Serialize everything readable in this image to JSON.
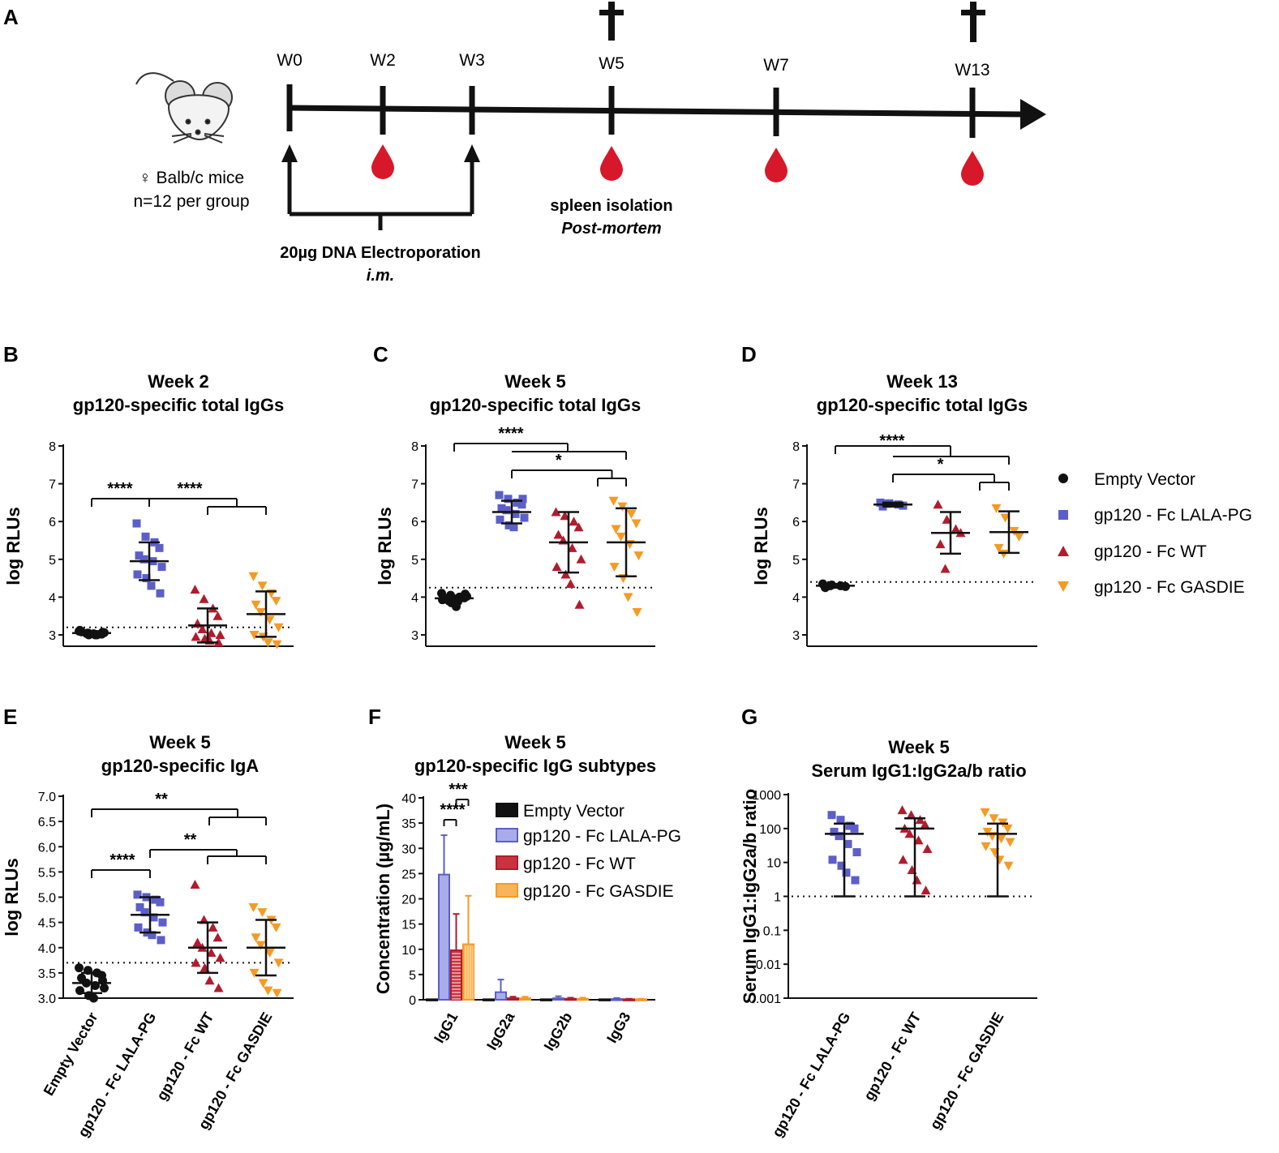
{
  "colors": {
    "empty": "#111111",
    "lala": "#5b5fc7",
    "wt": "#b01c2e",
    "gasdie": "#f59a23",
    "blood": "#d7182a"
  },
  "panel_a": {
    "letter": "A",
    "mouse_label": "♀ Balb/c mice",
    "n_label": "n=12 per group",
    "weeks": [
      "W0",
      "W2",
      "W3",
      "W5",
      "W7",
      "W13"
    ],
    "electroporation": "20µg DNA Electroporation",
    "route": "i.m.",
    "spleen": "spleen isolation",
    "postmortem": "Post-mortem",
    "cross_glyph": "✝",
    "drop_icon": "blood-drop-icon"
  },
  "legend": {
    "items": [
      "Empty Vector",
      "gp120 - Fc LALA-PG",
      "gp120 - Fc WT",
      "gp120 - Fc GASDIE"
    ]
  },
  "chart_data": [
    {
      "id": "B",
      "type": "scatter",
      "letter": "B",
      "title": [
        "Week 2",
        "gp120-specific total IgGs"
      ],
      "ylabel": "log RLUs",
      "ylim": [
        2.7,
        8
      ],
      "yticks": [
        3,
        4,
        5,
        6,
        7,
        8
      ],
      "ytick_labels": [
        "3",
        "4",
        "5",
        "6",
        "7",
        "8"
      ],
      "cutoff": 3.2,
      "categories": [
        "Empty Vector",
        "gp120 - Fc LALA-PG",
        "gp120 - Fc WT",
        "gp120 - Fc GASDIE"
      ],
      "groups": [
        {
          "mean": 3.05,
          "sd": 0.05,
          "points": [
            3.1,
            3.05,
            3.0,
            3.02,
            3.08,
            3.04,
            3.0,
            3.06,
            3.12,
            3.0,
            3.03,
            3.07
          ]
        },
        {
          "mean": 4.95,
          "sd": 0.5,
          "points": [
            5.95,
            5.6,
            5.45,
            5.3,
            5.1,
            5.0,
            4.95,
            4.8,
            4.6,
            4.5,
            4.3,
            4.1
          ]
        },
        {
          "mean": 3.25,
          "sd": 0.45,
          "points": [
            4.2,
            3.95,
            3.7,
            3.5,
            3.3,
            3.15,
            3.05,
            3.0,
            2.95,
            2.9,
            2.85,
            2.8
          ]
        },
        {
          "mean": 3.55,
          "sd": 0.6,
          "points": [
            4.55,
            4.3,
            4.1,
            3.9,
            3.8,
            3.6,
            3.4,
            3.2,
            3.0,
            2.95,
            2.8,
            2.75
          ]
        }
      ],
      "sig": [
        {
          "label": "****",
          "from": 0,
          "to": 1
        },
        {
          "label": "****",
          "from": 1,
          "to": [
            2,
            3
          ]
        }
      ]
    },
    {
      "id": "C",
      "type": "scatter",
      "letter": "C",
      "title": [
        "Week 5",
        "gp120-specific total IgGs"
      ],
      "ylabel": "log RLUs",
      "ylim": [
        2.7,
        8
      ],
      "yticks": [
        3,
        4,
        5,
        6,
        7,
        8
      ],
      "ytick_labels": [
        "3",
        "4",
        "5",
        "6",
        "7",
        "8"
      ],
      "cutoff": 4.25,
      "categories": [
        "Empty Vector",
        "gp120 - Fc LALA-PG",
        "gp120 - Fc WT",
        "gp120 - Fc GASDIE"
      ],
      "groups": [
        {
          "mean": 3.97,
          "sd": 0.07,
          "points": [
            4.1,
            4.05,
            4.0,
            3.98,
            3.95,
            3.9,
            3.88,
            4.02,
            3.93,
            3.85,
            3.75,
            4.08
          ]
        },
        {
          "mean": 6.25,
          "sd": 0.3,
          "points": [
            6.7,
            6.6,
            6.5,
            6.45,
            6.35,
            6.3,
            6.2,
            6.1,
            6.05,
            5.9,
            5.85,
            6.6
          ]
        },
        {
          "mean": 5.45,
          "sd": 0.8,
          "points": [
            6.25,
            6.15,
            6.0,
            5.85,
            5.65,
            5.5,
            5.3,
            5.0,
            4.8,
            4.6,
            4.35,
            3.8
          ]
        },
        {
          "mean": 5.45,
          "sd": 0.9,
          "points": [
            6.55,
            6.4,
            6.2,
            5.95,
            5.8,
            5.6,
            5.4,
            5.1,
            4.8,
            4.5,
            4.0,
            3.6
          ]
        }
      ],
      "sig": [
        {
          "label": "****",
          "from": 0,
          "to": [
            1,
            2,
            3
          ]
        },
        {
          "label": "*",
          "from": 1,
          "to": [
            2,
            3
          ]
        }
      ]
    },
    {
      "id": "D",
      "type": "scatter",
      "letter": "D",
      "title": [
        "Week 13",
        "gp120-specific total IgGs"
      ],
      "ylabel": "log RLUs",
      "ylim": [
        2.7,
        8
      ],
      "yticks": [
        3,
        4,
        5,
        6,
        7,
        8
      ],
      "ytick_labels": [
        "3",
        "4",
        "5",
        "6",
        "7",
        "8"
      ],
      "cutoff": 4.4,
      "categories": [
        "Empty Vector",
        "gp120 - Fc LALA-PG",
        "gp120 - Fc WT",
        "gp120 - Fc GASDIE"
      ],
      "groups": [
        {
          "mean": 4.3,
          "sd": 0.05,
          "points": [
            4.35,
            4.32,
            4.3,
            4.28,
            4.25,
            4.3
          ]
        },
        {
          "mean": 6.45,
          "sd": 0.05,
          "points": [
            6.5,
            6.48,
            6.45,
            6.42,
            6.4,
            6.47
          ]
        },
        {
          "mean": 5.7,
          "sd": 0.55,
          "points": [
            6.45,
            6.05,
            5.8,
            5.7,
            5.4,
            4.75
          ]
        },
        {
          "mean": 5.72,
          "sd": 0.55,
          "points": [
            6.35,
            6.1,
            5.75,
            5.6,
            5.3,
            5.15
          ]
        }
      ],
      "sig": [
        {
          "label": "****",
          "from": 0,
          "to": [
            1,
            2,
            3
          ]
        },
        {
          "label": "*",
          "from": 1,
          "to": [
            2,
            3
          ]
        }
      ]
    },
    {
      "id": "E",
      "type": "scatter",
      "letter": "E",
      "title": [
        "Week 5",
        "gp120-specific IgA"
      ],
      "ylabel": "log RLUs",
      "ylim": [
        3.0,
        7.0
      ],
      "yticks": [
        3.0,
        3.5,
        4.0,
        4.5,
        5.0,
        5.5,
        6.0,
        6.5,
        7.0
      ],
      "ytick_labels": [
        "3.0",
        "3.5",
        "4.0",
        "4.5",
        "5.0",
        "5.5",
        "6.0",
        "6.5",
        "7.0"
      ],
      "cutoff": 3.7,
      "categories": [
        "Empty Vector",
        "gp120 - Fc LALA-PG",
        "gp120 - Fc WT",
        "gp120 - Fc GASDIE"
      ],
      "groups": [
        {
          "mean": 3.3,
          "sd": 0.2,
          "points": [
            3.6,
            3.55,
            3.5,
            3.45,
            3.4,
            3.3,
            3.25,
            3.2,
            3.15,
            3.05,
            3.0,
            3.35
          ]
        },
        {
          "mean": 4.65,
          "sd": 0.35,
          "points": [
            5.05,
            5.0,
            4.95,
            4.9,
            4.8,
            4.7,
            4.6,
            4.5,
            4.4,
            4.3,
            4.25,
            4.15
          ]
        },
        {
          "mean": 4.0,
          "sd": 0.5,
          "points": [
            5.25,
            4.55,
            4.4,
            4.2,
            4.1,
            4.0,
            3.9,
            3.8,
            3.7,
            3.6,
            3.35,
            3.2
          ]
        },
        {
          "mean": 4.0,
          "sd": 0.55,
          "points": [
            4.8,
            4.7,
            4.55,
            4.4,
            4.2,
            4.05,
            3.9,
            3.7,
            3.5,
            3.3,
            3.15,
            3.1
          ]
        }
      ],
      "sig": [
        {
          "label": "**",
          "from": 0,
          "to": [
            2,
            3
          ]
        },
        {
          "label": "****",
          "from": 0,
          "to": 1
        },
        {
          "label": "**",
          "from": 1,
          "to": [
            2,
            3
          ]
        }
      ]
    },
    {
      "id": "F",
      "type": "bar",
      "letter": "F",
      "title": [
        "Week 5",
        "gp120-specific IgG subtypes"
      ],
      "ylabel": "Concentration (µg/mL)",
      "ylim": [
        0,
        40
      ],
      "yticks": [
        0,
        5,
        10,
        15,
        20,
        25,
        30,
        35,
        40
      ],
      "ytick_labels": [
        "0",
        "5",
        "10",
        "15",
        "20",
        "25",
        "30",
        "35",
        "40"
      ],
      "categories": [
        "IgG1",
        "IgG2a",
        "IgG2b",
        "IgG3"
      ],
      "series": [
        {
          "name": "Empty Vector",
          "values": [
            0.1,
            0.1,
            0.1,
            0.1
          ],
          "errors": [
            0,
            0,
            0,
            0
          ]
        },
        {
          "name": "gp120 - Fc LALA-PG",
          "values": [
            24.8,
            1.5,
            0.3,
            0.15
          ],
          "errors": [
            7.8,
            2.5,
            0.4,
            0.2
          ]
        },
        {
          "name": "gp120 - Fc WT",
          "values": [
            9.8,
            0.3,
            0.2,
            0.1
          ],
          "errors": [
            7.2,
            0.3,
            0.2,
            0.1
          ]
        },
        {
          "name": "gp120 - Fc GASDIE",
          "values": [
            11.0,
            0.3,
            0.2,
            0.1
          ],
          "errors": [
            9.6,
            0.3,
            0.2,
            0.1
          ]
        }
      ],
      "sig": [
        {
          "label": "***",
          "from": 2,
          "to": 3
        },
        {
          "label": "****",
          "from": 1,
          "to": 2
        }
      ]
    },
    {
      "id": "G",
      "type": "scatter",
      "letter": "G",
      "title": [
        "Week 5",
        "Serum IgG1:IgG2a/b ratio"
      ],
      "ylabel": "Serum IgG1:IgG2a/b ratio",
      "yscale": "log",
      "ylim": [
        0.001,
        1000
      ],
      "yticks": [
        0.001,
        0.01,
        0.1,
        1,
        10,
        100,
        1000
      ],
      "ytick_labels": [
        "0.001",
        "0.01",
        "0.1",
        "1",
        "10",
        "100",
        "1000"
      ],
      "cutoff": 1,
      "categories": [
        "gp120 - Fc LALA-PG",
        "gp120 - Fc WT",
        "gp120 - Fc GASDIE"
      ],
      "groups": [
        {
          "mean": 70,
          "sd_low": 1,
          "sd_high": 140,
          "points": [
            250,
            180,
            120,
            100,
            80,
            60,
            35,
            20,
            12,
            8,
            5,
            3
          ]
        },
        {
          "mean": 100,
          "sd_low": 1,
          "sd_high": 200,
          "points": [
            350,
            250,
            180,
            130,
            100,
            70,
            45,
            25,
            12,
            6,
            3,
            1.5
          ]
        },
        {
          "mean": 70,
          "sd_low": 1,
          "sd_high": 140,
          "points": [
            300,
            200,
            150,
            100,
            80,
            60,
            50,
            40,
            30,
            20,
            12,
            8
          ]
        }
      ]
    }
  ]
}
